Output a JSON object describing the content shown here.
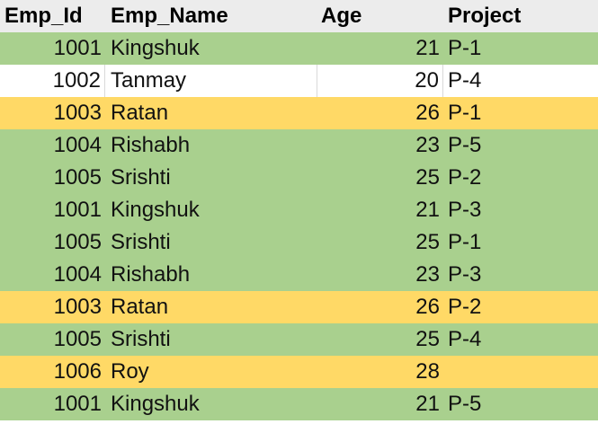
{
  "table": {
    "headers": [
      "Emp_Id",
      "Emp_Name",
      "Age",
      "Project"
    ],
    "rows": [
      {
        "id": "1001",
        "name": "Kingshuk",
        "age": "21",
        "project": "P-1",
        "fill": "green"
      },
      {
        "id": "1002",
        "name": "Tanmay",
        "age": "20",
        "project": "P-4",
        "fill": "white"
      },
      {
        "id": "1003",
        "name": "Ratan",
        "age": "26",
        "project": "P-1",
        "fill": "yellow"
      },
      {
        "id": "1004",
        "name": "Rishabh",
        "age": "23",
        "project": "P-5",
        "fill": "green"
      },
      {
        "id": "1005",
        "name": "Srishti",
        "age": "25",
        "project": "P-2",
        "fill": "green"
      },
      {
        "id": "1001",
        "name": "Kingshuk",
        "age": "21",
        "project": "P-3",
        "fill": "green"
      },
      {
        "id": "1005",
        "name": "Srishti",
        "age": "25",
        "project": "P-1",
        "fill": "green"
      },
      {
        "id": "1004",
        "name": "Rishabh",
        "age": "23",
        "project": "P-3",
        "fill": "green"
      },
      {
        "id": "1003",
        "name": "Ratan",
        "age": "26",
        "project": "P-2",
        "fill": "yellow"
      },
      {
        "id": "1005",
        "name": "Srishti",
        "age": "25",
        "project": "P-4",
        "fill": "green"
      },
      {
        "id": "1006",
        "name": "Roy",
        "age": "28",
        "project": "",
        "fill": "yellow"
      },
      {
        "id": "1001",
        "name": "Kingshuk",
        "age": "21",
        "project": "P-5",
        "fill": "green"
      }
    ]
  },
  "colors": {
    "green": "#a9d08e",
    "yellow": "#ffd966",
    "white": "#ffffff",
    "header": "#ececec"
  }
}
